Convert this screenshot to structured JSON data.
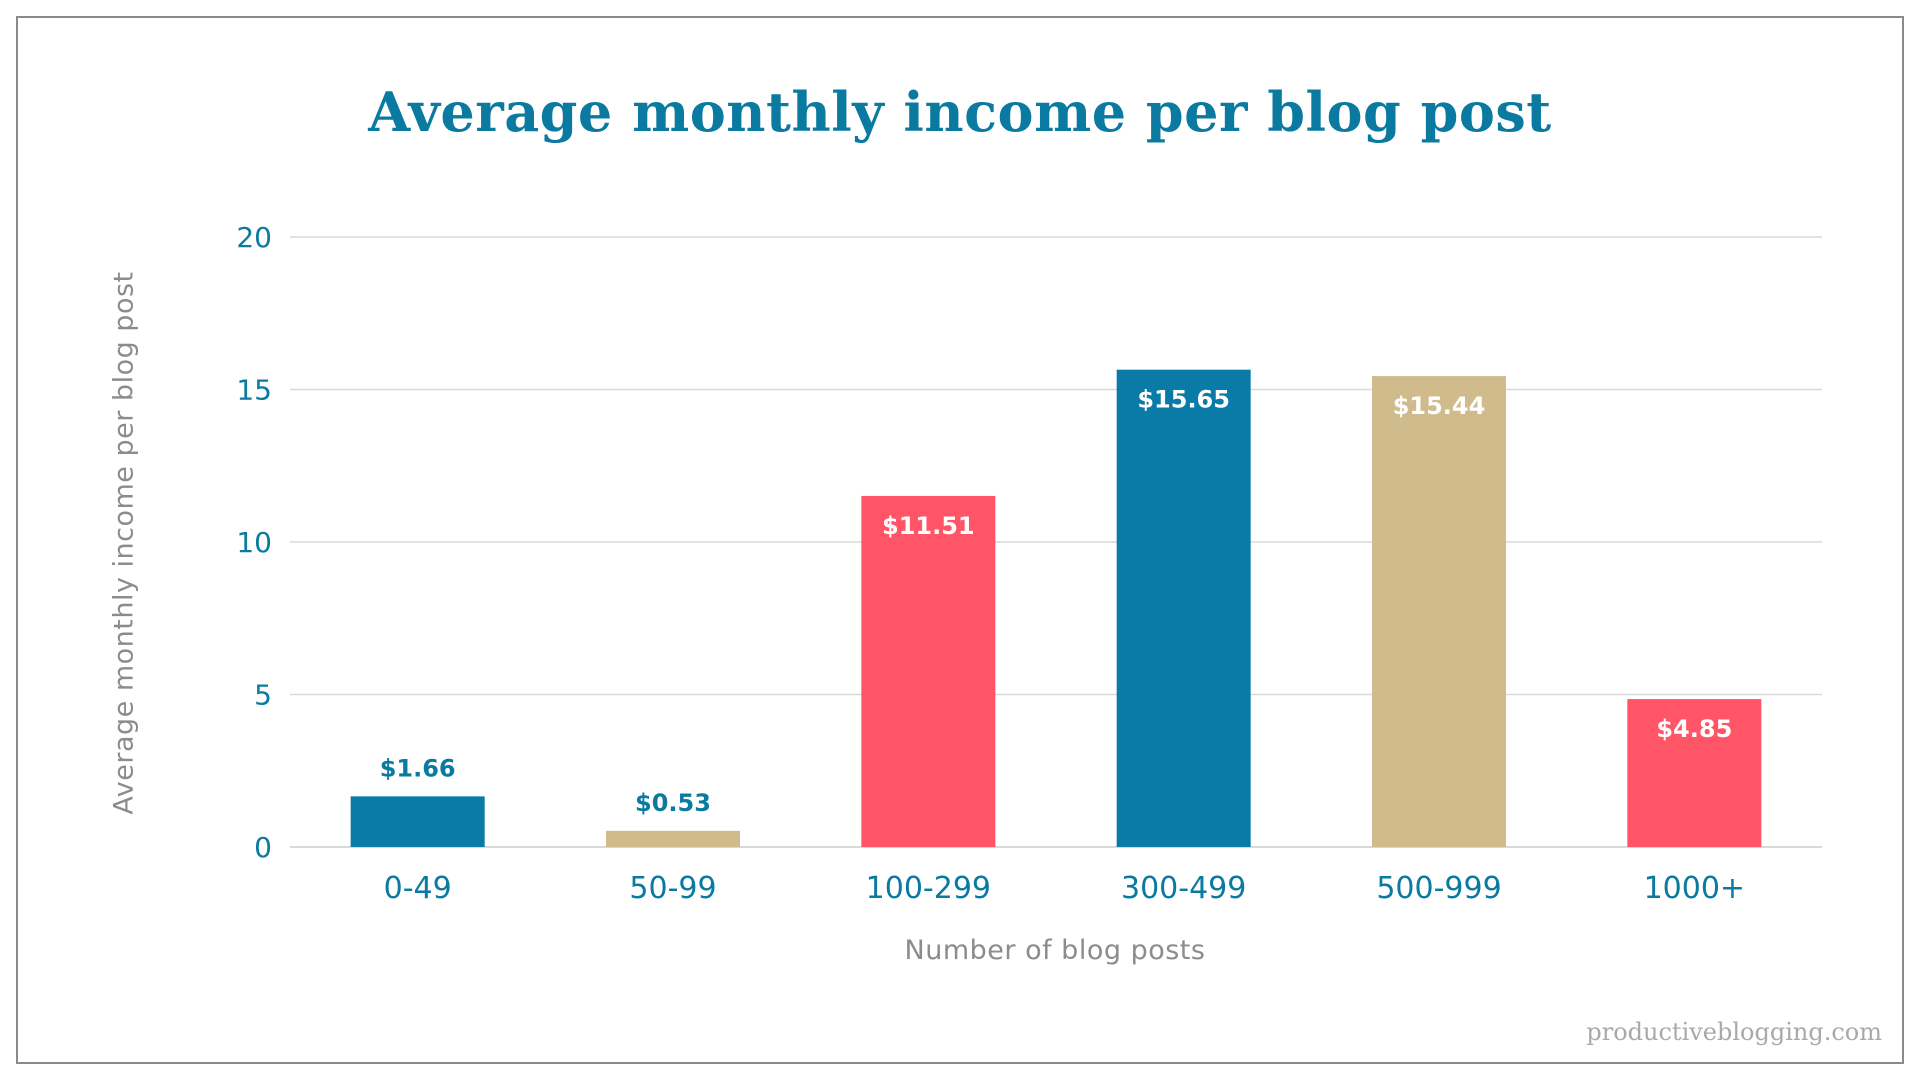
{
  "chart_data": {
    "type": "bar",
    "title": "Average monthly income per blog post",
    "xlabel": "Number of blog posts",
    "ylabel": "Average monthly income per blog post",
    "categories": [
      "0-49",
      "50-99",
      "100-299",
      "300-499",
      "500-999",
      "1000+"
    ],
    "values": [
      1.66,
      0.53,
      11.51,
      15.65,
      15.44,
      4.85
    ],
    "value_labels": [
      "$1.66",
      "$0.53",
      "$11.51",
      "$15.65",
      "$15.44",
      "$4.85"
    ],
    "bar_colors": [
      "#0a7aa6",
      "#d0bb8d",
      "#ff5566",
      "#0a7aa6",
      "#d0bb8d",
      "#ff5566"
    ],
    "ylim": [
      0,
      20
    ],
    "yticks": [
      0,
      5,
      10,
      15,
      20
    ],
    "grid": true,
    "legend": "none"
  },
  "colors": {
    "title": "#0a7aa0",
    "tick_text": "#0a7aa0",
    "axis_title": "#8c8c8c",
    "gridline": "#d9d9d9",
    "value_label_inside": "#ffffff",
    "value_label_outside": "#0a7aa0"
  },
  "watermark": "productiveblogging.com"
}
